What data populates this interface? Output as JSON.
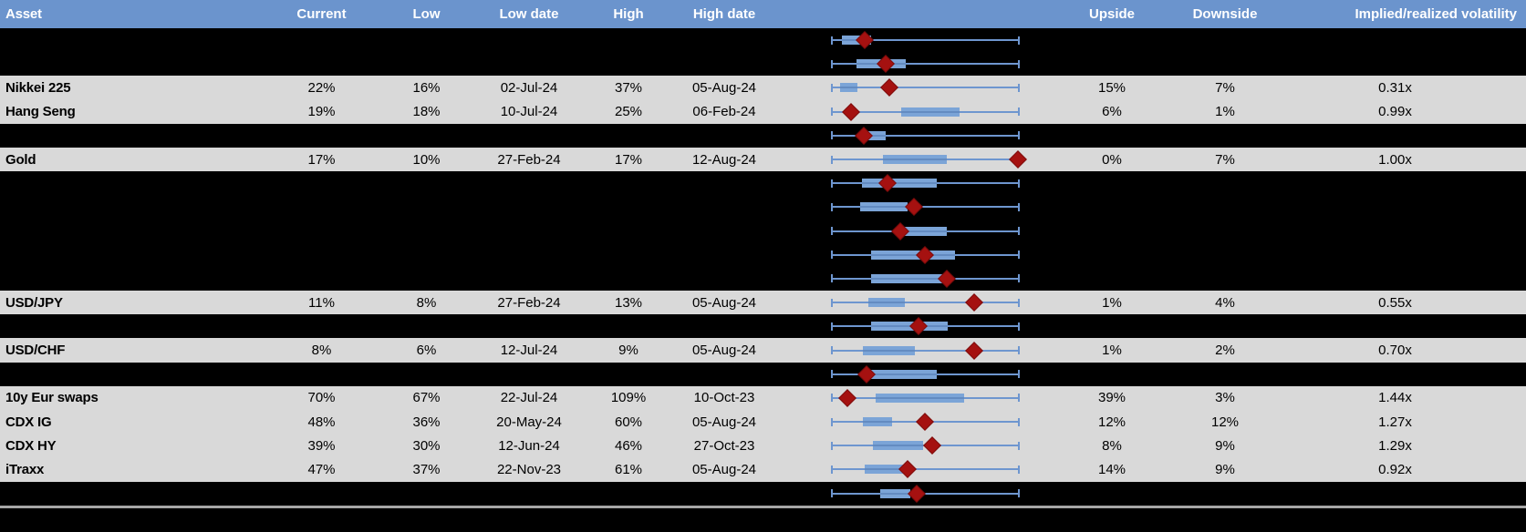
{
  "header": {
    "asset": "Asset",
    "current": "Current",
    "low": "Low",
    "low_date": "Low date",
    "high": "High",
    "high_date": "High date",
    "upside": "Upside",
    "downside": "Downside",
    "impl_real": "Implied/realized volatility"
  },
  "colors": {
    "header_bg": "#6b94cd",
    "row_bg": "#d9d9d9",
    "hidden_row_bg": "#000000",
    "box_fill": "#7ba4d7",
    "whisker": "#6e96cf",
    "marker": "#a51110",
    "separator": "#a6a6a6"
  },
  "chart_data": {
    "type": "table",
    "subtype": "boxplot-per-row",
    "columns": [
      "Asset",
      "Current",
      "Low",
      "Low date",
      "High",
      "High date",
      "Upside",
      "Downside",
      "Implied/realized volatility"
    ],
    "boxplot_scale": "relative position 0-100 across the plot track (no axis labels shown)",
    "legend": "box = interquartile range, whiskers = low/high range, red diamond = current level",
    "rows": [
      {
        "hidden": true,
        "box": {
          "wlo": 20,
          "blo": 24.2,
          "bhi": 36.5,
          "m": 33.8,
          "whi": 98.8
        }
      },
      {
        "hidden": true,
        "box": {
          "wlo": 20,
          "blo": 30.4,
          "bhi": 51.2,
          "m": 42.7,
          "whi": 98.8
        }
      },
      {
        "hidden": false,
        "asset": "Nikkei 225",
        "current": "22%",
        "low": "16%",
        "low_date": "02-Jul-24",
        "high": "37%",
        "high_date": "05-Aug-24",
        "upside": "15%",
        "downside": "7%",
        "impl_real": "0.31x",
        "box": {
          "wlo": 20,
          "blo": 23.5,
          "bhi": 30.8,
          "m": 44.2,
          "whi": 98.8
        }
      },
      {
        "hidden": false,
        "asset": "Hang Seng",
        "current": "19%",
        "low": "18%",
        "low_date": "10-Jul-24",
        "high": "25%",
        "high_date": "06-Feb-24",
        "upside": "6%",
        "downside": "1%",
        "impl_real": "0.99x",
        "box": {
          "wlo": 20,
          "blo": 49.2,
          "bhi": 73.8,
          "m": 28.1,
          "whi": 98.8
        }
      },
      {
        "hidden": true,
        "box": {
          "wlo": 20,
          "blo": 34.6,
          "bhi": 42.7,
          "m": 33.5,
          "whi": 98.8
        }
      },
      {
        "hidden": false,
        "asset": "Gold",
        "current": "17%",
        "low": "10%",
        "low_date": "27-Feb-24",
        "high": "17%",
        "high_date": "12-Aug-24",
        "upside": "0%",
        "downside": "7%",
        "impl_real": "1.00x",
        "box": {
          "wlo": 20,
          "blo": 41.5,
          "bhi": 68.5,
          "m": 98.5,
          "whi": 98.8
        }
      },
      {
        "hidden": true,
        "box": {
          "wlo": 20,
          "blo": 32.7,
          "bhi": 64.2,
          "m": 43.5,
          "whi": 98.8
        }
      },
      {
        "hidden": true,
        "box": {
          "wlo": 20,
          "blo": 31.9,
          "bhi": 51.9,
          "m": 54.6,
          "whi": 98.8
        }
      },
      {
        "hidden": true,
        "box": {
          "wlo": 20,
          "blo": 50.8,
          "bhi": 68.5,
          "m": 48.8,
          "whi": 98.8
        }
      },
      {
        "hidden": true,
        "box": {
          "wlo": 20,
          "blo": 36.5,
          "bhi": 71.9,
          "m": 59.2,
          "whi": 98.8
        }
      },
      {
        "hidden": true,
        "box": {
          "wlo": 20,
          "blo": 36.5,
          "bhi": 66.5,
          "m": 68.5,
          "whi": 98.8
        }
      },
      {
        "hidden": false,
        "asset": "USD/JPY",
        "current": "11%",
        "low": "8%",
        "low_date": "27-Feb-24",
        "high": "13%",
        "high_date": "05-Aug-24",
        "upside": "1%",
        "downside": "4%",
        "impl_real": "0.55x",
        "box": {
          "wlo": 20,
          "blo": 35.4,
          "bhi": 50.8,
          "m": 80.0,
          "whi": 98.8
        }
      },
      {
        "hidden": true,
        "box": {
          "wlo": 20,
          "blo": 36.5,
          "bhi": 68.8,
          "m": 56.5,
          "whi": 98.8
        }
      },
      {
        "hidden": false,
        "asset": "USD/CHF",
        "current": "8%",
        "low": "6%",
        "low_date": "12-Jul-24",
        "high": "9%",
        "high_date": "05-Aug-24",
        "upside": "1%",
        "downside": "2%",
        "impl_real": "0.70x",
        "box": {
          "wlo": 20,
          "blo": 33.1,
          "bhi": 55.0,
          "m": 80.0,
          "whi": 98.8
        }
      },
      {
        "hidden": true,
        "box": {
          "wlo": 20,
          "blo": 35.8,
          "bhi": 64.2,
          "m": 34.6,
          "whi": 98.8
        }
      },
      {
        "hidden": false,
        "asset": "10y Eur swaps",
        "current": "70%",
        "low": "67%",
        "low_date": "22-Jul-24",
        "high": "109%",
        "high_date": "10-Oct-23",
        "upside": "39%",
        "downside": "3%",
        "impl_real": "1.44x",
        "box": {
          "wlo": 20,
          "blo": 38.5,
          "bhi": 75.8,
          "m": 26.5,
          "whi": 98.8
        }
      },
      {
        "hidden": false,
        "asset": "CDX IG",
        "current": "48%",
        "low": "36%",
        "low_date": "20-May-24",
        "high": "60%",
        "high_date": "05-Aug-24",
        "upside": "12%",
        "downside": "12%",
        "impl_real": "1.27x",
        "box": {
          "wlo": 20,
          "blo": 33.1,
          "bhi": 45.4,
          "m": 59.2,
          "whi": 98.8
        }
      },
      {
        "hidden": false,
        "asset": "CDX HY",
        "current": "39%",
        "low": "30%",
        "low_date": "12-Jun-24",
        "high": "46%",
        "high_date": "27-Oct-23",
        "upside": "8%",
        "downside": "9%",
        "impl_real": "1.29x",
        "box": {
          "wlo": 20,
          "blo": 37.3,
          "bhi": 58.5,
          "m": 62.3,
          "whi": 98.8
        }
      },
      {
        "hidden": false,
        "asset": "iTraxx",
        "current": "47%",
        "low": "37%",
        "low_date": "22-Nov-23",
        "high": "61%",
        "high_date": "05-Aug-24",
        "upside": "14%",
        "downside": "9%",
        "impl_real": "0.92x",
        "box": {
          "wlo": 20,
          "blo": 33.8,
          "bhi": 50.8,
          "m": 51.9,
          "whi": 98.8
        }
      },
      {
        "hidden": true,
        "box": {
          "wlo": 20,
          "blo": 40.4,
          "bhi": 53.1,
          "m": 55.8,
          "whi": 98.8
        }
      }
    ]
  }
}
